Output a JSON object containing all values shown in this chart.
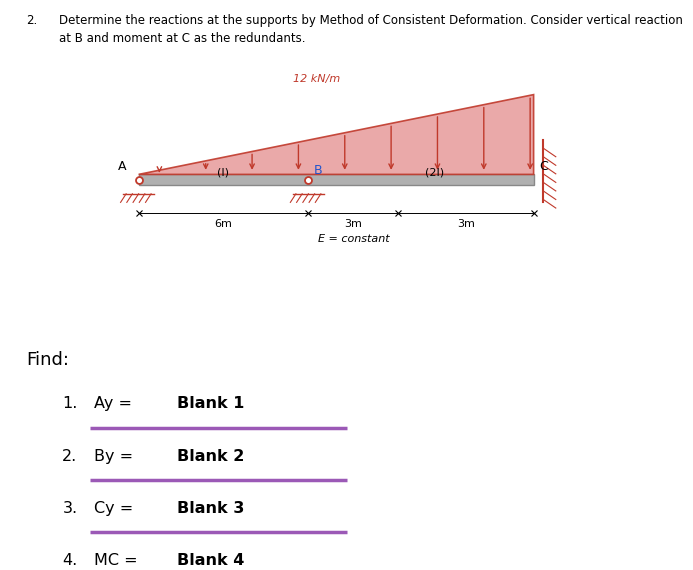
{
  "title_number": "2.",
  "title_text": "Determine the reactions at the supports by Method of Consistent Deformation. Consider vertical reaction\nat B and moment at C as the redundants.",
  "load_label": "12 kN/m",
  "beam_color": "#c0392b",
  "beam_fill": "#e8a0a0",
  "gray_beam": "#888888",
  "section_I_label": "(I)",
  "section_2I_label": "(2I)",
  "E_label": "E = constant",
  "dim_6m": "6m",
  "dim_3m_1": "3m",
  "dim_3m_2": "3m",
  "A_label": "A",
  "B_label": "B",
  "C_label": "C",
  "find_label": "Find:",
  "items": [
    {
      "num": "1.",
      "label": "Ay = ",
      "blank": "Blank 1"
    },
    {
      "num": "2.",
      "label": "By = ",
      "blank": "Blank 2"
    },
    {
      "num": "3.",
      "label": "Cy = ",
      "blank": "Blank 3"
    },
    {
      "num": "4.",
      "label": "MC = ",
      "blank": "Blank 4"
    }
  ],
  "underline_color": "#9b59b6",
  "background_color": "#ffffff",
  "bx0": 0.2,
  "bx_B": 0.445,
  "bx_mid": 0.575,
  "bx1": 0.77,
  "by": 0.685
}
